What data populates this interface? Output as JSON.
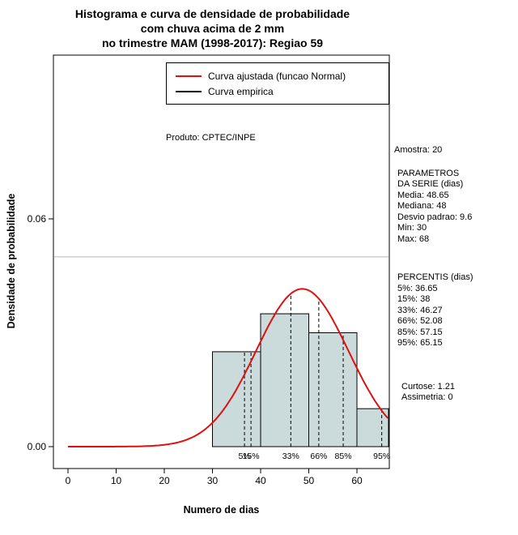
{
  "chart_data": {
    "type": "bar",
    "subtype": "histogram-with-density-curve",
    "title_lines": [
      "Histograma e curva de densidade de probabilidade",
      "com chuva acima de 2 mm",
      "no trimestre MAM (1998-2017): Regiao 59"
    ],
    "xlabel": "Numero de dias",
    "ylabel": "Densidade de probabilidade",
    "x_ticks": [
      0,
      10,
      20,
      30,
      40,
      50,
      60
    ],
    "y_ticks": [
      {
        "value": 0.0,
        "label": "0.00"
      },
      {
        "value": 0.06,
        "label": "0.06"
      }
    ],
    "xlim": [
      0,
      66.7
    ],
    "ylim": [
      0,
      0.065
    ],
    "grid": "single-horizontal-line",
    "gridline_y": 0.05,
    "histogram": {
      "breaks": [
        30,
        40,
        50,
        60,
        70
      ],
      "densities": [
        0.025,
        0.035,
        0.03,
        0.01
      ],
      "fill": "#cbdbdb",
      "stroke": "#000000"
    },
    "normal_curve": {
      "mean": 48.65,
      "sd": 9.6,
      "color": "#dd1111"
    },
    "percentiles": [
      {
        "label": "5%",
        "value": 36.65
      },
      {
        "label": "15%",
        "value": 38
      },
      {
        "label": "33%",
        "value": 46.27
      },
      {
        "label": "66%",
        "value": 52.08
      },
      {
        "label": "85%",
        "value": 57.15
      },
      {
        "label": "95%",
        "value": 65.15
      }
    ],
    "legend": {
      "position": "top-right-inside",
      "items": [
        {
          "label": "Curva ajustada (funcao Normal)",
          "color": "#dd1111"
        },
        {
          "label": "Curva empirica",
          "color": "#000000"
        }
      ]
    },
    "annotation": "Produto: CPTEC/INPE"
  },
  "stats_panel": {
    "groups": [
      {
        "indent": 0,
        "lines": [
          "Amostra: 20"
        ]
      },
      {
        "indent": 4,
        "lines": [
          "PARAMETROS",
          "DA SERIE (dias)",
          "Media: 48.65",
          "Mediana: 48",
          "Desvio padrao: 9.6",
          "Min: 30",
          "Max: 68"
        ]
      },
      {
        "indent": 4,
        "lines": [
          "PERCENTIS (dias)",
          "5%: 36.65",
          "15%: 38",
          "33%: 46.27",
          "66%: 52.08",
          "85%: 57.15",
          "95%: 65.15"
        ]
      },
      {
        "indent": 9,
        "lines": [
          "Curtose: 1.21",
          "Assimetria: 0"
        ]
      }
    ]
  }
}
